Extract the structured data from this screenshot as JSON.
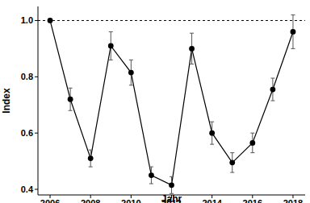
{
  "chart_data": {
    "type": "line",
    "x_label": "Jahr",
    "y_label": "Index",
    "x": [
      2006,
      2007,
      2008,
      2009,
      2010,
      2011,
      2012,
      2013,
      2014,
      2015,
      2016,
      2017,
      2018
    ],
    "values": [
      1.0,
      0.72,
      0.51,
      0.91,
      0.815,
      0.45,
      0.415,
      0.9,
      0.6,
      0.495,
      0.565,
      0.755,
      0.96
    ],
    "errors": [
      0,
      0.04,
      0.03,
      0.05,
      0.045,
      0.03,
      0.03,
      0.055,
      0.04,
      0.035,
      0.035,
      0.04,
      0.06
    ],
    "color": "#000000",
    "marker": "circle",
    "line_style": "solid",
    "hline": 1,
    "xlim": [
      2005.4,
      2018.6
    ],
    "xticks": [
      2006,
      2008,
      2010,
      2012,
      2014,
      2016,
      2018
    ],
    "ylim": [
      0.38,
      1.05
    ],
    "yticks": [
      0.4,
      0.6,
      0.8,
      {
        "value": 1,
        "label": "1.0"
      }
    ],
    "grid": false
  }
}
